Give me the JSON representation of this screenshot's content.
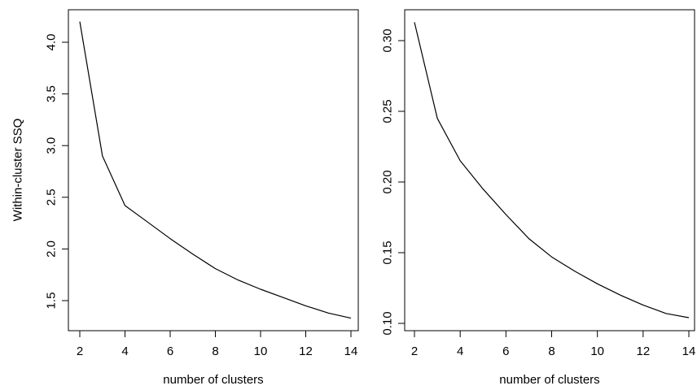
{
  "chart_data": [
    {
      "type": "line",
      "title": "",
      "xlabel": "number of clusters",
      "ylabel": "Within-cluster SSQ",
      "xlim": [
        2,
        14
      ],
      "ylim": [
        1.5,
        4.0
      ],
      "x_ticks": [
        "2",
        "4",
        "6",
        "8",
        "10",
        "12",
        "14"
      ],
      "y_ticks": [
        "1.5",
        "2.0",
        "2.5",
        "3.0",
        "3.5",
        "4.0"
      ],
      "series": [
        {
          "x": [
            2,
            3,
            4,
            5,
            6,
            7,
            8,
            9,
            10,
            11,
            12,
            13,
            14
          ],
          "y": [
            4.2,
            2.9,
            2.42,
            2.26,
            2.1,
            1.95,
            1.81,
            1.7,
            1.61,
            1.53,
            1.45,
            1.38,
            1.33
          ]
        }
      ],
      "grid": false,
      "color": "#000000"
    },
    {
      "type": "line",
      "title": "",
      "xlabel": "number of clusters",
      "ylabel": "",
      "xlim": [
        2,
        14
      ],
      "ylim": [
        0.1,
        0.3
      ],
      "x_ticks": [
        "2",
        "4",
        "6",
        "8",
        "10",
        "12",
        "14"
      ],
      "y_ticks": [
        "0.10",
        "0.15",
        "0.20",
        "0.25",
        "0.30"
      ],
      "series": [
        {
          "x": [
            2,
            3,
            4,
            5,
            6,
            7,
            8,
            9,
            10,
            11,
            12,
            13,
            14
          ],
          "y": [
            0.313,
            0.245,
            0.215,
            0.195,
            0.177,
            0.16,
            0.147,
            0.137,
            0.128,
            0.12,
            0.113,
            0.107,
            0.104
          ]
        }
      ],
      "grid": false,
      "color": "#000000"
    }
  ]
}
